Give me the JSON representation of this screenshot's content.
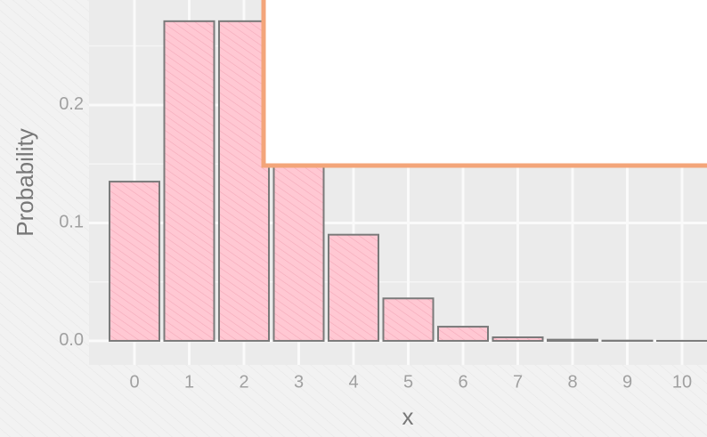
{
  "chart_data": {
    "type": "bar",
    "x_label": "x",
    "y_label": "Probability",
    "categories": [
      "0",
      "1",
      "2",
      "3",
      "4",
      "5",
      "6",
      "7",
      "8",
      "9",
      "10"
    ],
    "values": [
      0.135,
      0.271,
      0.271,
      0.18,
      0.09,
      0.036,
      0.012,
      0.003,
      0.001,
      0.0002,
      4e-05
    ],
    "color": "#ffc8d3",
    "ylim": [
      -0.0204,
      0.289
    ],
    "yticks": [
      {
        "value": 0,
        "label": "0.0"
      },
      0.1,
      0.2
    ],
    "grid": true
  }
}
